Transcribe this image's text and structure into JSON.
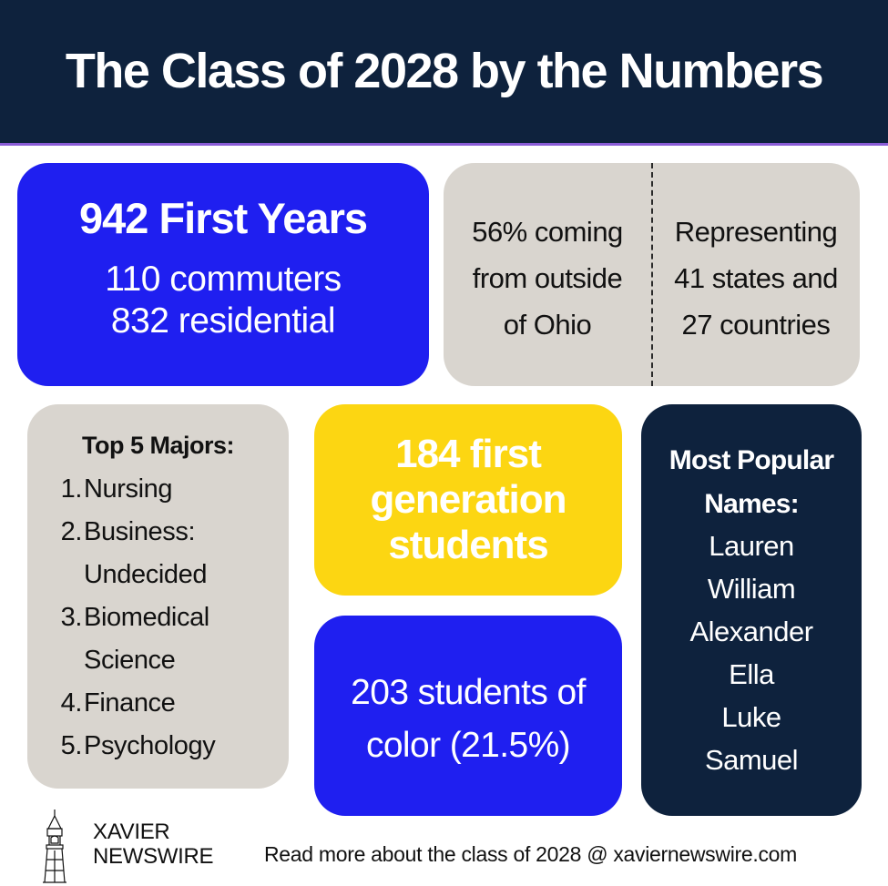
{
  "header": {
    "title": "The Class of 2028 by the Numbers"
  },
  "first_years": {
    "headline": "942 First Years",
    "line1": "110 commuters",
    "line2": "832 residential"
  },
  "geography": {
    "left": [
      "56% coming",
      "from outside",
      "of Ohio"
    ],
    "right": [
      "Representing",
      "41 states and",
      "27 countries"
    ]
  },
  "majors": {
    "title": "Top 5 Majors:",
    "items": [
      {
        "num": "1.",
        "lines": [
          "Nursing"
        ]
      },
      {
        "num": "2.",
        "lines": [
          "Business:",
          "Undecided"
        ]
      },
      {
        "num": "3.",
        "lines": [
          "Biomedical",
          "Science"
        ]
      },
      {
        "num": "4.",
        "lines": [
          "Finance"
        ]
      },
      {
        "num": "5.",
        "lines": [
          "Psychology"
        ]
      }
    ]
  },
  "first_gen": {
    "lines": [
      "184 first",
      "generation",
      "students"
    ]
  },
  "students_of_color": {
    "lines": [
      "203 students of",
      "color (21.5%)"
    ]
  },
  "names": {
    "title_lines": [
      "Most Popular",
      "Names:"
    ],
    "items": [
      "Lauren",
      "William",
      "Alexander",
      "Ella",
      "Luke",
      "Samuel"
    ]
  },
  "logo": {
    "line1": "XAVIER",
    "line2": "NEWSWIRE",
    "icon": "bell-tower-icon"
  },
  "footer": {
    "text": "Read more about the class of 2028 @ xaviernewswire.com"
  },
  "colors": {
    "navy": "#0e223d",
    "blue": "#1f1ff0",
    "gray": "#d9d5cf",
    "yellow": "#fcd612",
    "accent_line": "#8a5cd6"
  }
}
